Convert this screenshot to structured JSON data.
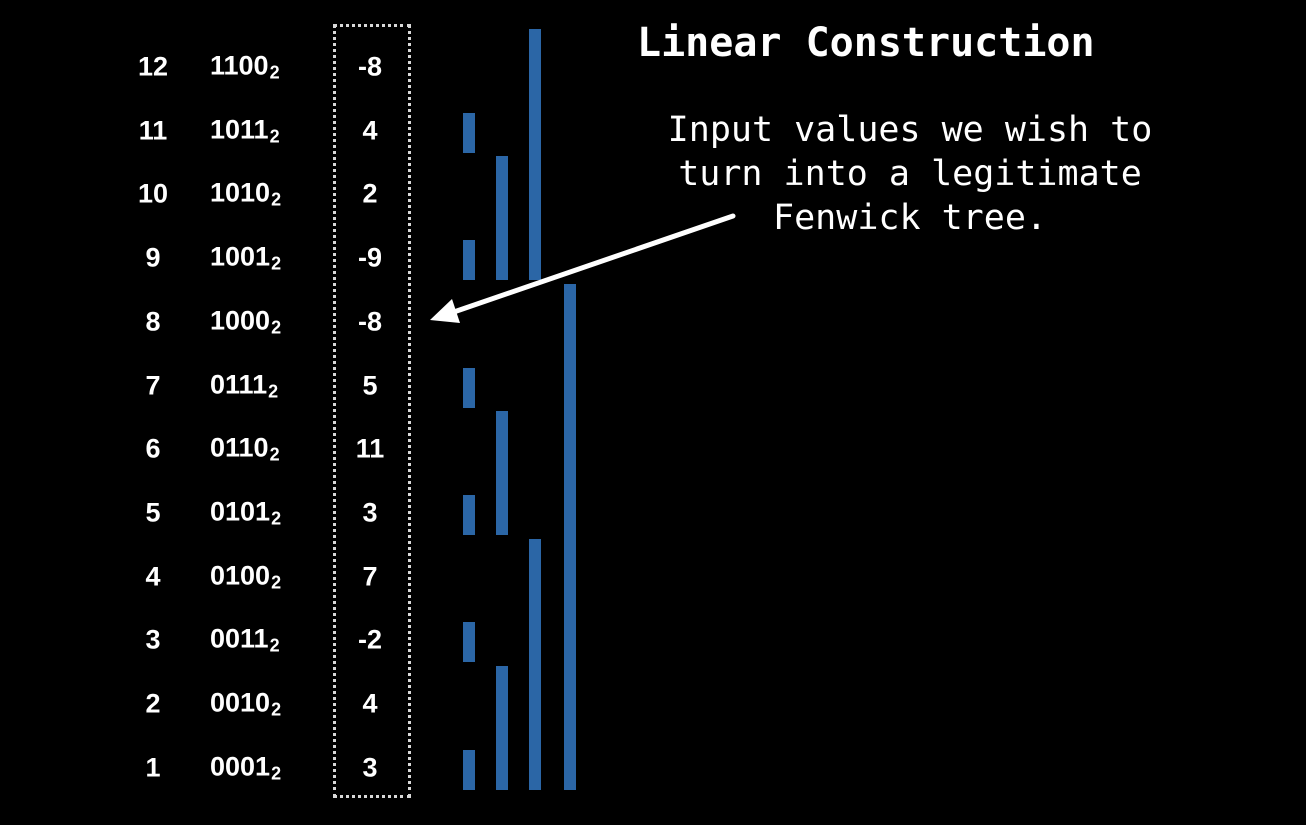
{
  "title": "Linear Construction",
  "annotation": {
    "lines": [
      "Input values we wish to",
      "turn into a legitimate",
      "Fenwick tree."
    ]
  },
  "binary_subscript": "2",
  "rows": [
    {
      "index": "12",
      "binary": "1100",
      "value": "-8",
      "bar_span": 4
    },
    {
      "index": "11",
      "binary": "1011",
      "value": "4",
      "bar_span": 1
    },
    {
      "index": "10",
      "binary": "1010",
      "value": "2",
      "bar_span": 2
    },
    {
      "index": "9",
      "binary": "1001",
      "value": "-9",
      "bar_span": 1
    },
    {
      "index": "8",
      "binary": "1000",
      "value": "-8",
      "bar_span": 8
    },
    {
      "index": "7",
      "binary": "0111",
      "value": "5",
      "bar_span": 1
    },
    {
      "index": "6",
      "binary": "0110",
      "value": "11",
      "bar_span": 2
    },
    {
      "index": "5",
      "binary": "0101",
      "value": "3",
      "bar_span": 1
    },
    {
      "index": "4",
      "binary": "0100",
      "value": "7",
      "bar_span": 4
    },
    {
      "index": "3",
      "binary": "0011",
      "value": "-2",
      "bar_span": 1
    },
    {
      "index": "2",
      "binary": "0010",
      "value": "4",
      "bar_span": 2
    },
    {
      "index": "1",
      "binary": "0001",
      "value": "3",
      "bar_span": 1
    }
  ],
  "colors": {
    "bar": "#2b66a6",
    "background": "#000000",
    "text": "#ffffff"
  }
}
